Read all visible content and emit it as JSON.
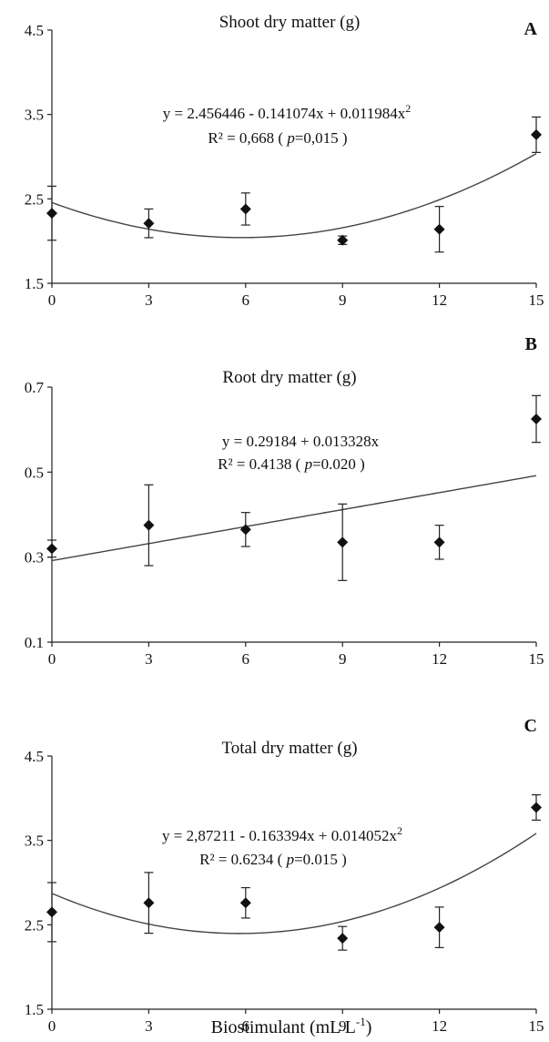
{
  "figure": {
    "x_axis_title": "Biostimulant (mL L",
    "x_axis_title_sup": "-1",
    "x_axis_title_end": ")"
  },
  "chart_data": [
    {
      "type": "scatter",
      "panel": "A",
      "title": "Shoot dry matter (g)",
      "x": [
        0,
        3,
        6,
        9,
        12,
        15
      ],
      "y": [
        2.33,
        2.21,
        2.38,
        2.01,
        2.14,
        3.26
      ],
      "y_err": [
        0.32,
        0.17,
        0.19,
        0.05,
        0.27,
        0.21
      ],
      "xticks": [
        "0",
        "3",
        "6",
        "9",
        "12",
        "15"
      ],
      "yticks": [
        "1.5",
        "2.5",
        "3.5",
        "4.5"
      ],
      "xlim": [
        0,
        15
      ],
      "ylim": [
        1.5,
        4.5
      ],
      "fit": {
        "kind": "quadratic",
        "coef": [
          2.456446,
          -0.141074,
          0.011984
        ]
      },
      "equation": "y = 2.456446 - 0.141074x + 0.011984x",
      "equation_sup": "2",
      "r2_prefix": "R² = 0,668  (",
      "p_symbol": "p",
      "r2_suffix": "=0,015 )"
    },
    {
      "type": "scatter",
      "panel": "B",
      "title": "Root dry matter (g)",
      "x": [
        0,
        3,
        6,
        9,
        12,
        15
      ],
      "y": [
        0.32,
        0.375,
        0.365,
        0.335,
        0.335,
        0.625
      ],
      "y_err": [
        0.02,
        0.095,
        0.04,
        0.09,
        0.04,
        0.055
      ],
      "xticks": [
        "0",
        "3",
        "6",
        "9",
        "12",
        "15"
      ],
      "yticks": [
        "0.1",
        "0.3",
        "0.5",
        "0.7"
      ],
      "xlim": [
        0,
        15
      ],
      "ylim": [
        0.1,
        0.7
      ],
      "fit": {
        "kind": "linear",
        "coef": [
          0.29184,
          0.013328
        ]
      },
      "equation": "y = 0.29184 + 0.013328x",
      "equation_sup": "",
      "r2_prefix": "R² = 0.4138  (",
      "p_symbol": "p",
      "r2_suffix": "=0.020 )"
    },
    {
      "type": "scatter",
      "panel": "C",
      "title": "Total dry matter (g)",
      "x": [
        0,
        3,
        6,
        9,
        12,
        15
      ],
      "y": [
        2.65,
        2.76,
        2.76,
        2.34,
        2.47,
        3.89
      ],
      "y_err": [
        0.35,
        0.36,
        0.18,
        0.14,
        0.24,
        0.15
      ],
      "xticks": [
        "0",
        "3",
        "6",
        "9",
        "12",
        "15"
      ],
      "yticks": [
        "1.5",
        "2.5",
        "3.5",
        "4.5"
      ],
      "xlim": [
        0,
        15
      ],
      "ylim": [
        1.5,
        4.5
      ],
      "fit": {
        "kind": "quadratic",
        "coef": [
          2.87211,
          -0.163394,
          0.014052
        ]
      },
      "equation": "y = 2,87211 - 0.163394x + 0.014052x",
      "equation_sup": "2",
      "r2_prefix": "R² = 0.6234  (",
      "p_symbol": "p",
      "r2_suffix": "=0.015 )"
    }
  ]
}
